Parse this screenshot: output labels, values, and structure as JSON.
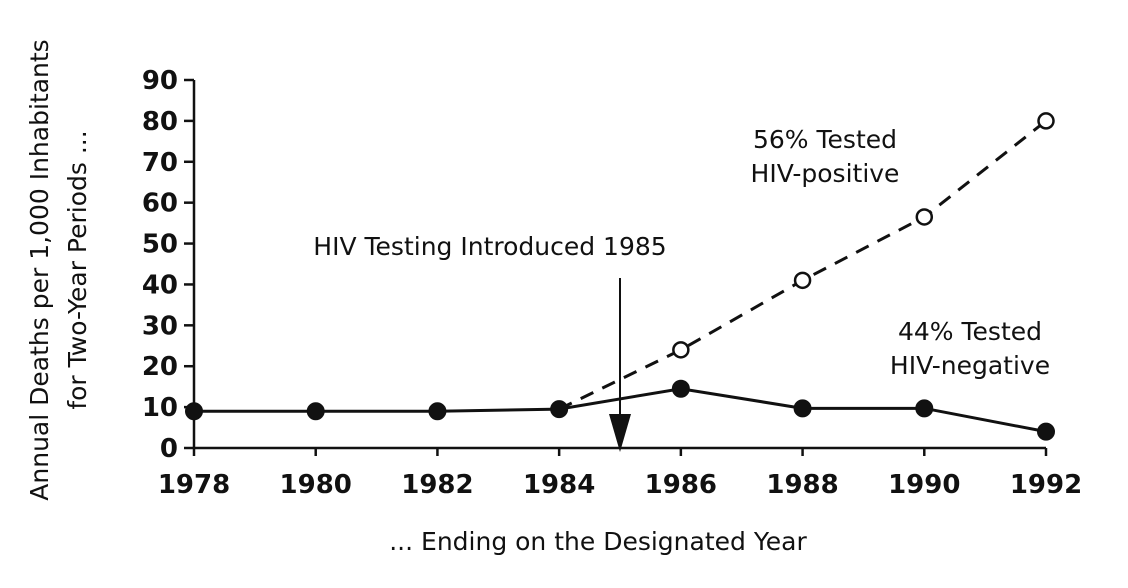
{
  "chart_data": {
    "type": "line",
    "title": "",
    "xlabel": "... Ending on the Designated Year",
    "ylabel_line1": "Annual Deaths per 1,000 Inhabitants",
    "ylabel_line2": "for Two-Year Periods ...",
    "x": [
      1978,
      1980,
      1982,
      1984,
      1986,
      1988,
      1990,
      1992
    ],
    "xlim": [
      1978,
      1992
    ],
    "ylim": [
      0,
      90
    ],
    "yticks": [
      0,
      10,
      20,
      30,
      40,
      50,
      60,
      70,
      80,
      90
    ],
    "grid": false,
    "series": [
      {
        "name": "44% Tested HIV-negative",
        "label_line1": "44% Tested",
        "label_line2": "HIV-negative",
        "style": "solid",
        "marker": "filled-circle",
        "x": [
          1978,
          1980,
          1982,
          1984,
          1986,
          1988,
          1990,
          1992
        ],
        "values": [
          9,
          9,
          9,
          9.5,
          14.5,
          9.7,
          9.7,
          4
        ]
      },
      {
        "name": "56% Tested HIV-positive",
        "label_line1": "56% Tested",
        "label_line2": "HIV-positive",
        "style": "dashed",
        "marker": "open-circle",
        "x": [
          1984,
          1986,
          1988,
          1990,
          1992
        ],
        "values": [
          9.5,
          24,
          41,
          56.5,
          80
        ],
        "marked": [
          false,
          true,
          true,
          true,
          true
        ]
      }
    ],
    "annotations": [
      {
        "text": "HIV Testing Introduced 1985",
        "x": 1985,
        "arrow": "down"
      }
    ]
  }
}
